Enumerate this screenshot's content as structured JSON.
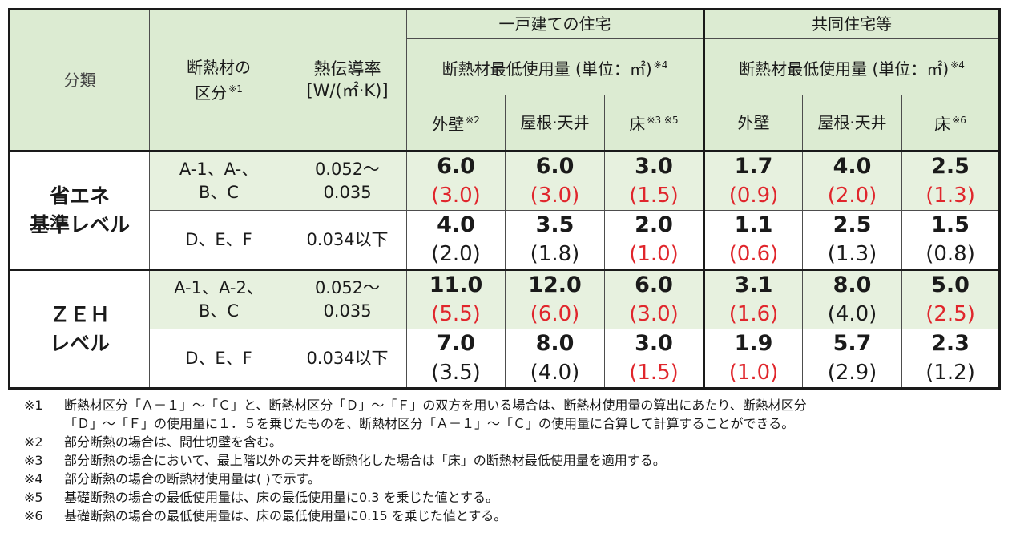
{
  "header": {
    "category": "分類",
    "insulation_class": "断熱材の区分",
    "insulation_class_line1": "断熱材の",
    "insulation_class_line2": "区分",
    "insulation_class_note": "※1",
    "conductivity_line1": "熱伝導率",
    "conductivity_line2": "[W/(㎡·K)]",
    "detached_house": "一戸建ての住宅",
    "collective_house": "共同住宅等",
    "min_usage": "断熱材最低使用量 (単位：㎡)",
    "min_usage_note": "※4",
    "cols_detached": [
      {
        "label": "外壁",
        "note": "※2"
      },
      {
        "label": "屋根·天井",
        "note": ""
      },
      {
        "label": "床",
        "note": "※3 ※5"
      }
    ],
    "cols_collective": [
      {
        "label": "外壁",
        "note": ""
      },
      {
        "label": "屋根·天井",
        "note": ""
      },
      {
        "label": "床",
        "note": "※6"
      }
    ]
  },
  "groups": [
    {
      "category_line1": "省エネ",
      "category_line2": "基準レベル",
      "rows": [
        {
          "class_line1": "A-1、A-、",
          "class_line2": "B、C",
          "cond_line1": "0.052～",
          "cond_line2": "0.035",
          "shade": "light",
          "cells": [
            {
              "v": "6.0",
              "p": "(3.0)",
              "red": true
            },
            {
              "v": "6.0",
              "p": "(3.0)",
              "red": true
            },
            {
              "v": "3.0",
              "p": "(1.5)",
              "red": true
            },
            {
              "v": "1.7",
              "p": "(0.9)",
              "red": true
            },
            {
              "v": "4.0",
              "p": "(2.0)",
              "red": true
            },
            {
              "v": "2.5",
              "p": "(1.3)",
              "red": true
            }
          ]
        },
        {
          "class_line1": "D、E、F",
          "class_line2": "",
          "cond_line1": "0.034以下",
          "cond_line2": "",
          "shade": "white",
          "cells": [
            {
              "v": "4.0",
              "p": "(2.0)",
              "red": false
            },
            {
              "v": "3.5",
              "p": "(1.8)",
              "red": false
            },
            {
              "v": "2.0",
              "p": "(1.0)",
              "red": true
            },
            {
              "v": "1.1",
              "p": "(0.6)",
              "red": true
            },
            {
              "v": "2.5",
              "p": "(1.3)",
              "red": false
            },
            {
              "v": "1.5",
              "p": "(0.8)",
              "red": false
            }
          ]
        }
      ]
    },
    {
      "category_line1": "ＺＥＨ",
      "category_line2": "レベル",
      "rows": [
        {
          "class_line1": "A-1、A-2、",
          "class_line2": "B、C",
          "cond_line1": "0.052～",
          "cond_line2": "0.035",
          "shade": "light",
          "cells": [
            {
              "v": "11.0",
              "p": "(5.5)",
              "red": true
            },
            {
              "v": "12.0",
              "p": "(6.0)",
              "red": true
            },
            {
              "v": "6.0",
              "p": "(3.0)",
              "red": true
            },
            {
              "v": "3.1",
              "p": "(1.6)",
              "red": true
            },
            {
              "v": "8.0",
              "p": "(4.0)",
              "red": false
            },
            {
              "v": "5.0",
              "p": "(2.5)",
              "red": true
            }
          ]
        },
        {
          "class_line1": "D、E、F",
          "class_line2": "",
          "cond_line1": "0.034以下",
          "cond_line2": "",
          "shade": "white",
          "cells": [
            {
              "v": "7.0",
              "p": "(3.5)",
              "red": false
            },
            {
              "v": "8.0",
              "p": "(4.0)",
              "red": false
            },
            {
              "v": "3.0",
              "p": "(1.5)",
              "red": true
            },
            {
              "v": "1.9",
              "p": "(1.0)",
              "red": true
            },
            {
              "v": "5.7",
              "p": "(2.9)",
              "red": false
            },
            {
              "v": "2.3",
              "p": "(1.2)",
              "red": false
            }
          ]
        }
      ]
    }
  ],
  "notes": [
    {
      "mark": "※1",
      "lines": [
        "断熱材区分「Ａ－１」～「Ｃ」と、断熱材区分「Ｄ」～「Ｆ」の双方を用いる場合は、断熱材使用量の算出にあたり、断熱材区分",
        "「Ｄ」～「Ｆ」の使用量に１．５を乗じたものを、断熱材区分「Ａ－１」～「Ｃ」の使用量に合算して計算することができる。"
      ]
    },
    {
      "mark": "※2",
      "lines": [
        "部分断熱の場合は、間仕切壁を含む。"
      ]
    },
    {
      "mark": "※3",
      "lines": [
        "部分断熱の場合において、最上階以外の天井を断熱化した場合は「床」の断熱材最低使用量を適用する。"
      ]
    },
    {
      "mark": "※4",
      "lines": [
        "部分断熱の場合の断熱材使用量は( )で示す。"
      ]
    },
    {
      "mark": "※5",
      "lines": [
        "基礎断熱の場合の最低使用量は、床の最低使用量に0.3 を乗じた値とする。"
      ]
    },
    {
      "mark": "※6",
      "lines": [
        "基礎断熱の場合の最低使用量は、床の最低使用量に0.15 を乗じた値とする。"
      ]
    }
  ],
  "colors": {
    "header_bg": "#dcebd2",
    "light_row_bg": "#e7f1df",
    "red_text": "#e0262c"
  }
}
